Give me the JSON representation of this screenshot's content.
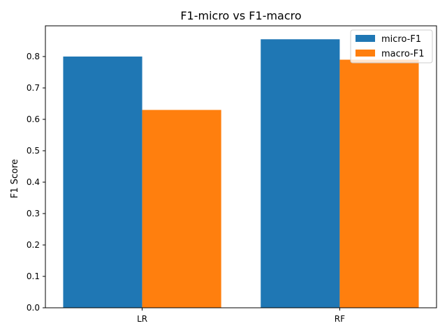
{
  "chart_data": {
    "type": "bar",
    "title": "F1-micro vs F1-macro",
    "xlabel": "",
    "ylabel": "F1 Score",
    "categories": [
      "LR",
      "RF"
    ],
    "series": [
      {
        "name": "micro-F1",
        "values": [
          0.8,
          0.855
        ],
        "color": "#1f77b4"
      },
      {
        "name": "macro-F1",
        "values": [
          0.63,
          0.79
        ],
        "color": "#ff7f0e"
      }
    ],
    "ylim": [
      0,
      0.8978
    ],
    "yticks": [
      0.0,
      0.1,
      0.2,
      0.3,
      0.4,
      0.5,
      0.6,
      0.7,
      0.8
    ],
    "ytick_labels": [
      "0.0",
      "0.1",
      "0.2",
      "0.3",
      "0.4",
      "0.5",
      "0.6",
      "0.7",
      "0.8"
    ],
    "grid": false,
    "legend_position": "top-right"
  }
}
